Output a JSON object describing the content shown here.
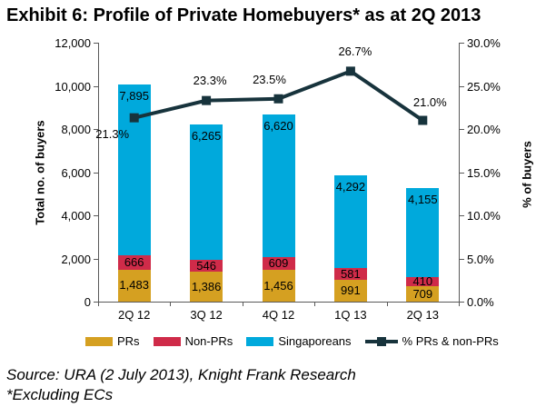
{
  "title": "Exhibit 6: Profile of Private Homebuyers* as at 2Q 2013",
  "chart_data": {
    "type": "bar",
    "subtype": "stacked-bar-with-line",
    "categories": [
      "2Q 12",
      "3Q 12",
      "4Q 12",
      "1Q 13",
      "2Q 13"
    ],
    "series": [
      {
        "name": "PRs",
        "type": "bar",
        "color": "#D5A021",
        "values": [
          1483,
          1386,
          1456,
          991,
          709
        ]
      },
      {
        "name": "Non-PRs",
        "type": "bar",
        "color": "#CF2B49",
        "values": [
          666,
          546,
          609,
          581,
          410
        ]
      },
      {
        "name": "Singaporeans",
        "type": "bar",
        "color": "#00A9DC",
        "values": [
          7895,
          6265,
          6620,
          4292,
          4155
        ]
      },
      {
        "name": "% PRs & non-PRs",
        "type": "line",
        "color": "#17333C",
        "axis": "right",
        "values": [
          21.3,
          23.3,
          23.5,
          26.7,
          21.0
        ]
      }
    ],
    "left_axis": {
      "title": "Total no. of buyers",
      "min": 0,
      "max": 12000,
      "step": 2000
    },
    "right_axis": {
      "title": "% of buyers",
      "min": 0,
      "max": 30,
      "step": 5,
      "suffix": "%"
    },
    "stacked": true,
    "grid": false,
    "legend_position": "bottom"
  },
  "footer": {
    "source_line": "Source: URA (2 July 2013), Knight Frank Research",
    "note_line": "*Excluding ECs"
  }
}
